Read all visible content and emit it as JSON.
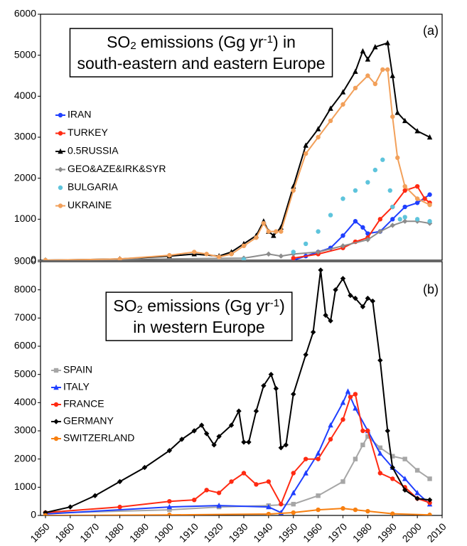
{
  "chart_data": [
    {
      "type": "line",
      "title": [
        [
          {
            "text": "SO"
          },
          {
            "text": "2",
            "shift": "sub"
          },
          {
            "text": " emissions (Gg yr"
          },
          {
            "text": "-1",
            "shift": "super"
          },
          {
            "text": ") in"
          }
        ],
        [
          {
            "text": "south-eastern and eastern Europe"
          }
        ]
      ],
      "panel_label": "(a)",
      "xlim": [
        1848,
        2010
      ],
      "ylim": [
        0,
        6000
      ],
      "yticks": [
        0,
        1000,
        2000,
        3000,
        4000,
        5000,
        6000
      ],
      "legend": "left",
      "series": [
        {
          "name": "IRAN",
          "color": "#1f3fff",
          "marker": "circle",
          "line": true,
          "x": [
            1950,
            1955,
            1960,
            1965,
            1970,
            1975,
            1978,
            1980,
            1985,
            1990,
            1995,
            2000,
            2005
          ],
          "values": [
            0,
            100,
            200,
            300,
            600,
            950,
            800,
            650,
            700,
            1000,
            1300,
            1400,
            1600
          ]
        },
        {
          "name": "TURKEY",
          "color": "#ff2a12",
          "marker": "circle",
          "line": true,
          "x": [
            1950,
            1960,
            1970,
            1975,
            1980,
            1985,
            1990,
            1995,
            2000,
            2003,
            2005
          ],
          "values": [
            50,
            150,
            300,
            450,
            550,
            1000,
            1300,
            1700,
            1800,
            1500,
            1400
          ]
        },
        {
          "name": "0.5RUSSIA",
          "color": "#000000",
          "marker": "triangle",
          "line": true,
          "x": [
            1850,
            1880,
            1900,
            1910,
            1920,
            1925,
            1930,
            1935,
            1938,
            1940,
            1942,
            1945,
            1950,
            1955,
            1960,
            1965,
            1970,
            1975,
            1978,
            1980,
            1983,
            1988,
            1990,
            1992,
            1995,
            2000,
            2005
          ],
          "values": [
            0,
            30,
            100,
            150,
            100,
            200,
            400,
            600,
            950,
            700,
            600,
            800,
            1800,
            2800,
            3200,
            3700,
            4100,
            4600,
            5100,
            4900,
            5200,
            5300,
            4500,
            3600,
            3400,
            3150,
            3000
          ]
        },
        {
          "name": "GEO&AZE&IRK&SYR",
          "color": "#8c8c8c",
          "marker": "diamond",
          "line": true,
          "x": [
            1850,
            1930,
            1940,
            1945,
            1950,
            1960,
            1970,
            1980,
            1985,
            1990,
            1995,
            2000,
            2005
          ],
          "values": [
            0,
            50,
            150,
            100,
            150,
            200,
            350,
            500,
            700,
            850,
            950,
            950,
            900
          ]
        },
        {
          "name": "BULGARIA",
          "color": "#5ec4dc",
          "marker": "circle",
          "line": false,
          "x": [
            1850,
            1930,
            1950,
            1955,
            1960,
            1965,
            1970,
            1975,
            1980,
            1983,
            1986,
            1989,
            1990,
            1993,
            1995,
            2000,
            2005
          ],
          "values": [
            0,
            20,
            200,
            400,
            700,
            1100,
            1500,
            1700,
            1900,
            2200,
            2450,
            1700,
            1300,
            1000,
            1050,
            1000,
            950
          ]
        },
        {
          "name": "UKRAINE",
          "color": "#f2a05a",
          "marker": "circle",
          "line": true,
          "x": [
            1850,
            1880,
            1900,
            1910,
            1915,
            1920,
            1925,
            1930,
            1935,
            1938,
            1940,
            1943,
            1945,
            1950,
            1955,
            1960,
            1965,
            1970,
            1975,
            1980,
            1983,
            1986,
            1988,
            1990,
            1992,
            1995,
            2000,
            2005
          ],
          "values": [
            0,
            30,
            120,
            200,
            150,
            80,
            150,
            350,
            550,
            900,
            700,
            700,
            700,
            1700,
            2600,
            3000,
            3400,
            3800,
            4200,
            4500,
            4300,
            4650,
            4650,
            3500,
            2500,
            1800,
            1500,
            1350
          ]
        }
      ]
    },
    {
      "type": "line",
      "title": [
        [
          {
            "text": "SO"
          },
          {
            "text": "2",
            "shift": "sub"
          },
          {
            "text": " emissions (Gg yr"
          },
          {
            "text": "-1",
            "shift": "super"
          },
          {
            "text": ")"
          }
        ],
        [
          {
            "text": "in western Europe"
          }
        ]
      ],
      "panel_label": "(b)",
      "xlim": [
        1848,
        2010
      ],
      "ylim": [
        0,
        9000
      ],
      "yticks": [
        0,
        1000,
        2000,
        3000,
        4000,
        5000,
        6000,
        7000,
        8000,
        9000
      ],
      "xticks": [
        1850,
        1860,
        1870,
        1880,
        1890,
        1900,
        1910,
        1920,
        1930,
        1940,
        1950,
        1960,
        1970,
        1980,
        1990,
        2000,
        2010
      ],
      "legend": "left",
      "series": [
        {
          "name": "SPAIN",
          "color": "#a6a6a6",
          "marker": "square",
          "line": true,
          "x": [
            1850,
            1900,
            1920,
            1940,
            1950,
            1960,
            1970,
            1975,
            1978,
            1980,
            1985,
            1990,
            1995,
            2000,
            2005
          ],
          "values": [
            80,
            200,
            300,
            350,
            400,
            700,
            1200,
            2000,
            2500,
            2800,
            2400,
            2100,
            2000,
            1600,
            1300
          ]
        },
        {
          "name": "ITALY",
          "color": "#1f3fff",
          "marker": "triangle",
          "line": true,
          "x": [
            1850,
            1900,
            1920,
            1940,
            1945,
            1950,
            1955,
            1960,
            1965,
            1970,
            1972,
            1975,
            1980,
            1985,
            1990,
            1995,
            2000,
            2005
          ],
          "values": [
            50,
            300,
            350,
            300,
            100,
            800,
            1500,
            2200,
            3200,
            4000,
            4400,
            3800,
            3000,
            2200,
            1700,
            1300,
            800,
            400
          ]
        },
        {
          "name": "FRANCE",
          "color": "#ff2a12",
          "marker": "circle",
          "line": true,
          "x": [
            1850,
            1880,
            1900,
            1910,
            1915,
            1920,
            1925,
            1930,
            1935,
            1940,
            1945,
            1950,
            1955,
            1960,
            1965,
            1970,
            1973,
            1975,
            1978,
            1980,
            1985,
            1990,
            1995,
            2000,
            2005
          ],
          "values": [
            100,
            300,
            500,
            550,
            900,
            800,
            1200,
            1500,
            1100,
            1200,
            400,
            1500,
            2000,
            2000,
            2700,
            3400,
            4200,
            4300,
            3000,
            3000,
            1500,
            1300,
            1000,
            600,
            450
          ]
        },
        {
          "name": "GERMANY",
          "color": "#000000",
          "marker": "diamond",
          "line": true,
          "x": [
            1850,
            1860,
            1870,
            1880,
            1890,
            1900,
            1905,
            1910,
            1913,
            1915,
            1918,
            1920,
            1925,
            1928,
            1930,
            1932,
            1935,
            1938,
            1941,
            1943,
            1945,
            1947,
            1950,
            1955,
            1958,
            1961,
            1963,
            1965,
            1967,
            1970,
            1973,
            1975,
            1978,
            1980,
            1982,
            1985,
            1988,
            1990,
            1995,
            2000,
            2005
          ],
          "values": [
            100,
            300,
            700,
            1200,
            1700,
            2300,
            2700,
            3000,
            3200,
            2900,
            2500,
            2800,
            3200,
            3700,
            2600,
            2600,
            3700,
            4600,
            5000,
            4500,
            2400,
            2500,
            4300,
            5700,
            6500,
            8700,
            7100,
            6900,
            8000,
            8400,
            7800,
            7700,
            7400,
            7700,
            7600,
            5500,
            3000,
            1700,
            900,
            600,
            550
          ]
        },
        {
          "name": "SWITZERLAND",
          "color": "#f77f10",
          "marker": "circle",
          "line": true,
          "x": [
            1850,
            1900,
            1940,
            1950,
            1960,
            1970,
            1975,
            1980,
            1990,
            2005
          ],
          "values": [
            0,
            20,
            50,
            100,
            200,
            250,
            200,
            150,
            60,
            20
          ]
        }
      ]
    }
  ]
}
